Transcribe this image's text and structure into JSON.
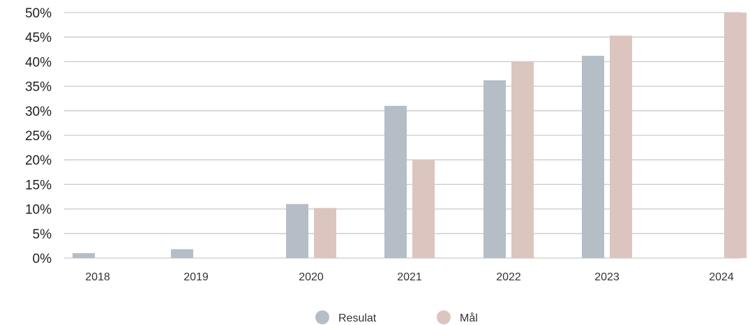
{
  "chart_data": {
    "type": "bar",
    "categories": [
      "2018",
      "2019",
      "2020",
      "2021",
      "2022",
      "2023",
      "2024"
    ],
    "series": [
      {
        "name": "Resulat",
        "values": [
          1,
          1.8,
          11,
          31,
          36.2,
          41.2,
          null
        ],
        "color": "#b5bec7"
      },
      {
        "name": "Mål",
        "values": [
          null,
          null,
          10.2,
          20,
          40,
          45.3,
          50
        ],
        "color": "#dcc5be"
      }
    ],
    "ylim": [
      0,
      50
    ],
    "yticks": [
      "0%",
      "5%",
      "10%",
      "15%",
      "20%",
      "25%",
      "30%",
      "35%",
      "40%",
      "45%",
      "50%"
    ],
    "grid": true,
    "legend": "bottom-center"
  }
}
